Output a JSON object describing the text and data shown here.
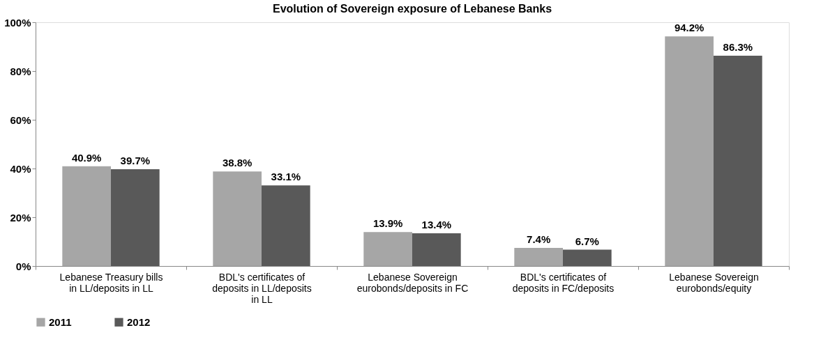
{
  "chart_data": {
    "type": "bar",
    "title": "Evolution of Sovereign exposure of Lebanese Banks",
    "categories": [
      "Lebanese Treasury bills in LL/deposits in LL",
      "BDL's certificates of deposits in LL/deposits in LL",
      "Lebanese Sovereign eurobonds/deposits in FC",
      "BDL's certificates of deposits in FC/deposits",
      "Lebanese Sovereign eurobonds/equity"
    ],
    "series": [
      {
        "name": "2011",
        "color": "#a6a6a6",
        "values": [
          40.9,
          38.8,
          13.9,
          7.4,
          94.2
        ],
        "value_labels": [
          "40.9%",
          "38.8%",
          "13.9%",
          "7.4%",
          "94.2%"
        ]
      },
      {
        "name": "2012",
        "color": "#595959",
        "values": [
          39.7,
          33.1,
          13.4,
          6.7,
          86.3
        ],
        "value_labels": [
          "39.7%",
          "33.1%",
          "13.4%",
          "6.7%",
          "86.3%"
        ]
      }
    ],
    "ylim": [
      0,
      100
    ],
    "yticks": [
      {
        "value": 0,
        "label": "0%"
      },
      {
        "value": 20,
        "label": "20%"
      },
      {
        "value": 40,
        "label": "40%"
      },
      {
        "value": 60,
        "label": "60%"
      },
      {
        "value": 80,
        "label": "80%"
      },
      {
        "value": 100,
        "label": "100%"
      }
    ],
    "grid": false,
    "legend": "bottom"
  }
}
